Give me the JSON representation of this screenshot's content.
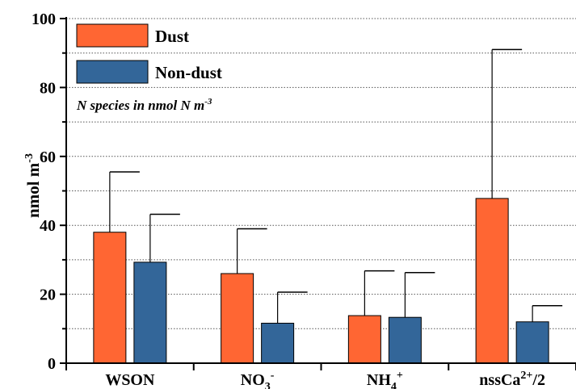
{
  "chart_data": {
    "type": "bar",
    "categories": [
      "WSON",
      "NO3-",
      "NH4+",
      "nssCa2+/2"
    ],
    "category_labels": [
      {
        "base": "WSON",
        "sub": "",
        "sup": "",
        "tail": ""
      },
      {
        "base": "NO",
        "sub": "3",
        "sup": "-",
        "tail": ""
      },
      {
        "base": "NH",
        "sub": "4",
        "sup": "+",
        "tail": ""
      },
      {
        "base": "nssCa",
        "sub": "",
        "sup": "2+",
        "tail": "/2"
      }
    ],
    "series": [
      {
        "name": "Dust",
        "color": "#FF6633",
        "values": [
          38,
          26,
          13.8,
          47.8
        ],
        "error_upper": [
          55.5,
          39,
          26.8,
          91
        ]
      },
      {
        "name": "Non-dust",
        "color": "#336699",
        "values": [
          29.3,
          11.6,
          13.3,
          12
        ],
        "error_upper": [
          43.2,
          20.6,
          26.3,
          16.7
        ]
      }
    ],
    "ylabel": {
      "base": "nmol m",
      "sup": "-3"
    },
    "ylim": [
      0,
      100
    ],
    "yticks": [
      0,
      20,
      40,
      60,
      80,
      100
    ],
    "grid": "dotted horizontal lines every 10",
    "legend_position": "top-left",
    "annotation": {
      "text": "N species  in nmol N m",
      "sup": "-3"
    }
  }
}
